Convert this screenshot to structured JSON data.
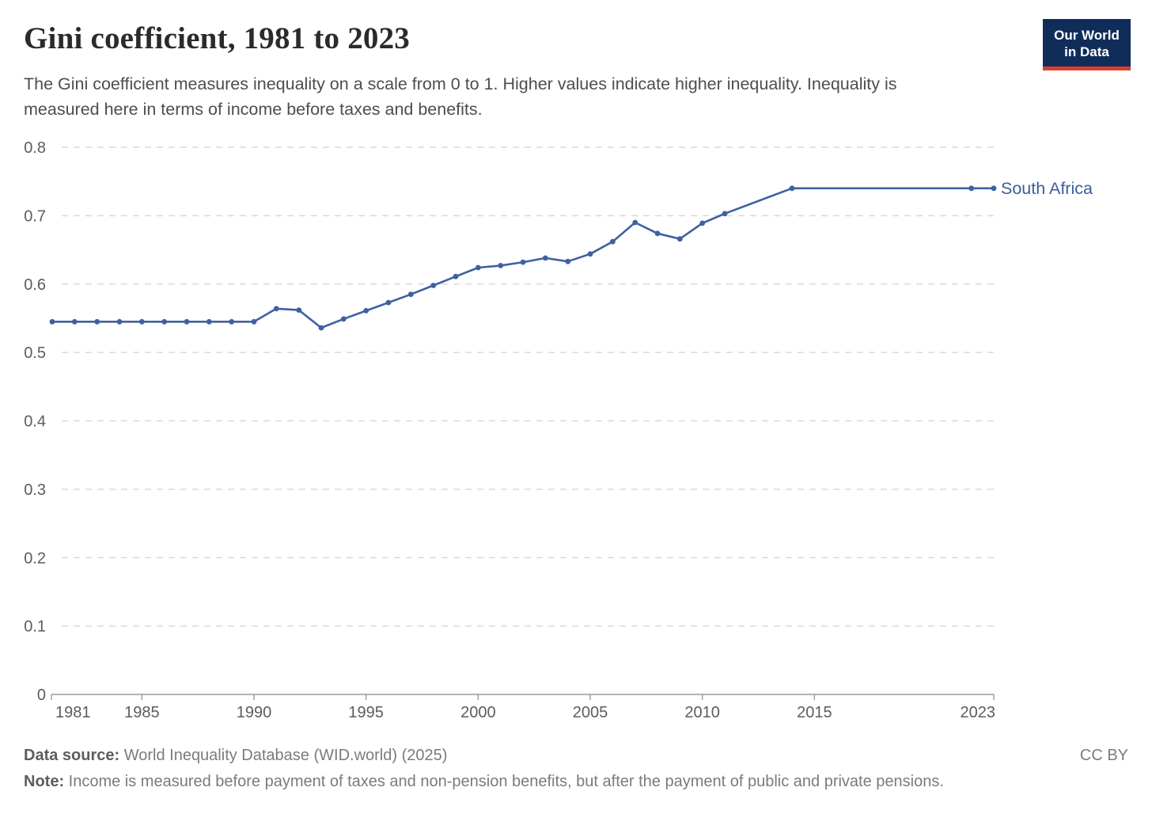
{
  "header": {
    "title": "Gini coefficient, 1981 to 2023",
    "subtitle": "The Gini coefficient measures inequality on a scale from 0 to 1. Higher values indicate higher inequality. Inequality is measured here in terms of income before taxes and benefits."
  },
  "logo": {
    "line1": "Our World",
    "line2": "in Data",
    "bg_color": "#102d5a",
    "accent_color": "#dd3c2b"
  },
  "chart_data": {
    "type": "line",
    "title": "Gini coefficient, 1981 to 2023",
    "xlabel": "",
    "ylabel": "",
    "xlim": [
      1981,
      2023
    ],
    "ylim": [
      0,
      0.8
    ],
    "xticks": [
      1981,
      1985,
      1990,
      1995,
      2000,
      2005,
      2010,
      2015,
      2023
    ],
    "yticks": [
      0,
      0.1,
      0.2,
      0.3,
      0.4,
      0.5,
      0.6,
      0.7,
      0.8
    ],
    "grid": "horizontal-dashed",
    "legend_position": "end-of-line-label",
    "marker": "circle",
    "series": [
      {
        "name": "South Africa",
        "color": "#3f61a1",
        "label_color": "#3d5c97",
        "points": [
          [
            1981,
            0.545
          ],
          [
            1982,
            0.545
          ],
          [
            1983,
            0.545
          ],
          [
            1984,
            0.545
          ],
          [
            1985,
            0.545
          ],
          [
            1986,
            0.545
          ],
          [
            1987,
            0.545
          ],
          [
            1988,
            0.545
          ],
          [
            1989,
            0.545
          ],
          [
            1990,
            0.545
          ],
          [
            1991,
            0.564
          ],
          [
            1992,
            0.562
          ],
          [
            1993,
            0.536
          ],
          [
            1994,
            0.549
          ],
          [
            1995,
            0.561
          ],
          [
            1996,
            0.573
          ],
          [
            1997,
            0.585
          ],
          [
            1998,
            0.598
          ],
          [
            1999,
            0.611
          ],
          [
            2000,
            0.624
          ],
          [
            2001,
            0.627
          ],
          [
            2002,
            0.632
          ],
          [
            2003,
            0.638
          ],
          [
            2004,
            0.633
          ],
          [
            2005,
            0.644
          ],
          [
            2006,
            0.662
          ],
          [
            2007,
            0.69
          ],
          [
            2008,
            0.674
          ],
          [
            2009,
            0.666
          ],
          [
            2010,
            0.689
          ],
          [
            2011,
            0.703
          ],
          [
            2014,
            0.74
          ],
          [
            2022,
            0.74
          ],
          [
            2023,
            0.74
          ]
        ]
      }
    ],
    "style": {
      "grid_color": "#d9d9d9",
      "axis_color": "#9a9a9a",
      "tick_label_color": "#5c5c5c"
    }
  },
  "footer": {
    "source_label": "Data source:",
    "source_text": " World Inequality Database (WID.world) (2025)",
    "note_label": "Note:",
    "note_text": " Income is measured before payment of taxes and non-pension benefits, but after the payment of public and private pensions.",
    "license": "CC BY"
  }
}
